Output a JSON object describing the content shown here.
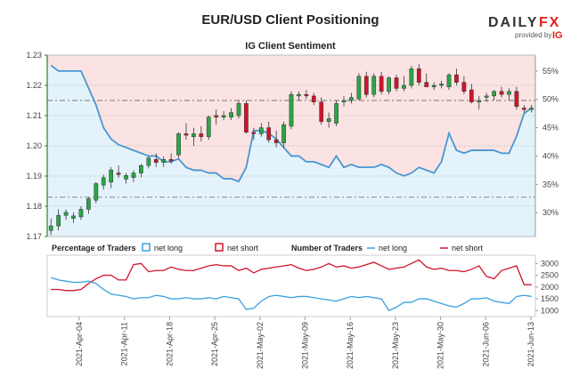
{
  "header": {
    "title": "EUR/USD Client Positioning",
    "subtitle": "IG Client Sentiment"
  },
  "brand": {
    "name_a": "DAILY",
    "name_b": "FX",
    "provided_by": "provided by",
    "partner": "IG"
  },
  "colors": {
    "long": "#39a0e0",
    "short": "#d0152b",
    "up_candle": "#28a745",
    "down_candle": "#d0152b",
    "axis_green": "#2f7d2f",
    "long_fill": "#e4f3fb",
    "short_fill": "#fbe3e3"
  },
  "legend": {
    "pct_label": "Percentage of Traders",
    "net_long": "net long",
    "net_short": "net short",
    "num_label": "Number of Traders"
  },
  "chart_data": {
    "type": "candlestick-with-sentiment",
    "price_axis": {
      "ticks": [
        "1.17",
        "1.18",
        "1.19",
        "1.20",
        "1.21",
        "1.22",
        "1.23"
      ],
      "range": [
        1.17,
        1.23
      ]
    },
    "pct_axis": {
      "ticks": [
        "30%",
        "35%",
        "40%",
        "45%",
        "50%",
        "55%"
      ],
      "range": [
        25.8,
        57.8
      ]
    },
    "count_axis": {
      "ticks": [
        "1000",
        "1500",
        "2000",
        "2500",
        "3000"
      ],
      "range": [
        900,
        3200
      ]
    },
    "x_labels": [
      "2021-Apr-04",
      "2021-Apr-11",
      "2021-Apr-18",
      "2021-Apr-25",
      "2021-May-02",
      "2021-May-09",
      "2021-May-16",
      "2021-May-23",
      "2021-May-30",
      "2021-Jun-06",
      "2021-Jun-13"
    ],
    "reference_lines": {
      "price": 1.215,
      "price_low": 1.183
    },
    "candles": [
      {
        "o": 1.172,
        "h": 1.176,
        "l": 1.1705,
        "c": 1.1735
      },
      {
        "o": 1.1735,
        "h": 1.179,
        "l": 1.172,
        "c": 1.177
      },
      {
        "o": 1.177,
        "h": 1.179,
        "l": 1.1755,
        "c": 1.178
      },
      {
        "o": 1.176,
        "h": 1.178,
        "l": 1.1745,
        "c": 1.1768
      },
      {
        "o": 1.1765,
        "h": 1.18,
        "l": 1.1755,
        "c": 1.179
      },
      {
        "o": 1.179,
        "h": 1.183,
        "l": 1.1775,
        "c": 1.1825
      },
      {
        "o": 1.182,
        "h": 1.188,
        "l": 1.181,
        "c": 1.1875
      },
      {
        "o": 1.187,
        "h": 1.1905,
        "l": 1.1855,
        "c": 1.1895
      },
      {
        "o": 1.188,
        "h": 1.193,
        "l": 1.186,
        "c": 1.192
      },
      {
        "o": 1.191,
        "h": 1.1935,
        "l": 1.1895,
        "c": 1.1905
      },
      {
        "o": 1.189,
        "h": 1.191,
        "l": 1.1875,
        "c": 1.1902
      },
      {
        "o": 1.1895,
        "h": 1.192,
        "l": 1.188,
        "c": 1.191
      },
      {
        "o": 1.191,
        "h": 1.194,
        "l": 1.1895,
        "c": 1.1935
      },
      {
        "o": 1.1935,
        "h": 1.1965,
        "l": 1.1925,
        "c": 1.196
      },
      {
        "o": 1.1955,
        "h": 1.1975,
        "l": 1.193,
        "c": 1.1945
      },
      {
        "o": 1.1945,
        "h": 1.1965,
        "l": 1.193,
        "c": 1.1955
      },
      {
        "o": 1.1955,
        "h": 1.1975,
        "l": 1.194,
        "c": 1.195
      },
      {
        "o": 1.197,
        "h": 1.2045,
        "l": 1.196,
        "c": 1.204
      },
      {
        "o": 1.204,
        "h": 1.2075,
        "l": 1.202,
        "c": 1.2035
      },
      {
        "o": 1.203,
        "h": 1.206,
        "l": 1.2,
        "c": 1.204
      },
      {
        "o": 1.204,
        "h": 1.2065,
        "l": 1.2015,
        "c": 1.203
      },
      {
        "o": 1.203,
        "h": 1.21,
        "l": 1.202,
        "c": 1.2095
      },
      {
        "o": 1.21,
        "h": 1.212,
        "l": 1.207,
        "c": 1.2095
      },
      {
        "o": 1.2095,
        "h": 1.2115,
        "l": 1.2085,
        "c": 1.21
      },
      {
        "o": 1.2095,
        "h": 1.2125,
        "l": 1.2085,
        "c": 1.211
      },
      {
        "o": 1.21,
        "h": 1.215,
        "l": 1.209,
        "c": 1.214
      },
      {
        "o": 1.214,
        "h": 1.215,
        "l": 1.204,
        "c": 1.2045
      },
      {
        "o": 1.2045,
        "h": 1.206,
        "l": 1.202,
        "c": 1.204
      },
      {
        "o": 1.204,
        "h": 1.2075,
        "l": 1.203,
        "c": 1.206
      },
      {
        "o": 1.206,
        "h": 1.208,
        "l": 1.201,
        "c": 1.202
      },
      {
        "o": 1.202,
        "h": 1.205,
        "l": 1.1995,
        "c": 1.201
      },
      {
        "o": 1.201,
        "h": 1.208,
        "l": 1.1995,
        "c": 1.207
      },
      {
        "o": 1.2065,
        "h": 1.218,
        "l": 1.2055,
        "c": 1.217
      },
      {
        "o": 1.2165,
        "h": 1.218,
        "l": 1.215,
        "c": 1.217
      },
      {
        "o": 1.217,
        "h": 1.2185,
        "l": 1.2155,
        "c": 1.2165
      },
      {
        "o": 1.2165,
        "h": 1.2175,
        "l": 1.2135,
        "c": 1.2145
      },
      {
        "o": 1.2145,
        "h": 1.216,
        "l": 1.207,
        "c": 1.208
      },
      {
        "o": 1.208,
        "h": 1.211,
        "l": 1.206,
        "c": 1.209
      },
      {
        "o": 1.2075,
        "h": 1.215,
        "l": 1.2065,
        "c": 1.214
      },
      {
        "o": 1.2145,
        "h": 1.2165,
        "l": 1.213,
        "c": 1.215
      },
      {
        "o": 1.215,
        "h": 1.2175,
        "l": 1.214,
        "c": 1.216
      },
      {
        "o": 1.2155,
        "h": 1.224,
        "l": 1.215,
        "c": 1.223
      },
      {
        "o": 1.223,
        "h": 1.2245,
        "l": 1.216,
        "c": 1.217
      },
      {
        "o": 1.217,
        "h": 1.224,
        "l": 1.216,
        "c": 1.223
      },
      {
        "o": 1.223,
        "h": 1.2245,
        "l": 1.217,
        "c": 1.218
      },
      {
        "o": 1.218,
        "h": 1.223,
        "l": 1.217,
        "c": 1.2225
      },
      {
        "o": 1.2225,
        "h": 1.2235,
        "l": 1.218,
        "c": 1.219
      },
      {
        "o": 1.219,
        "h": 1.223,
        "l": 1.218,
        "c": 1.22
      },
      {
        "o": 1.22,
        "h": 1.2265,
        "l": 1.219,
        "c": 1.2255
      },
      {
        "o": 1.2255,
        "h": 1.227,
        "l": 1.22,
        "c": 1.221
      },
      {
        "o": 1.221,
        "h": 1.224,
        "l": 1.2195,
        "c": 1.2195
      },
      {
        "o": 1.2195,
        "h": 1.221,
        "l": 1.2185,
        "c": 1.22
      },
      {
        "o": 1.22,
        "h": 1.2215,
        "l": 1.219,
        "c": 1.2205
      },
      {
        "o": 1.2195,
        "h": 1.224,
        "l": 1.2185,
        "c": 1.2235
      },
      {
        "o": 1.2235,
        "h": 1.2255,
        "l": 1.22,
        "c": 1.221
      },
      {
        "o": 1.221,
        "h": 1.223,
        "l": 1.217,
        "c": 1.218
      },
      {
        "o": 1.2185,
        "h": 1.2205,
        "l": 1.214,
        "c": 1.2145
      },
      {
        "o": 1.2145,
        "h": 1.2165,
        "l": 1.212,
        "c": 1.215
      },
      {
        "o": 1.216,
        "h": 1.2175,
        "l": 1.2145,
        "c": 1.2165
      },
      {
        "o": 1.2165,
        "h": 1.2185,
        "l": 1.215,
        "c": 1.218
      },
      {
        "o": 1.218,
        "h": 1.2195,
        "l": 1.216,
        "c": 1.217
      },
      {
        "o": 1.217,
        "h": 1.219,
        "l": 1.215,
        "c": 1.218
      },
      {
        "o": 1.218,
        "h": 1.2195,
        "l": 1.212,
        "c": 1.213
      },
      {
        "o": 1.2125,
        "h": 1.2135,
        "l": 1.211,
        "c": 1.212
      },
      {
        "o": 1.212,
        "h": 1.2135,
        "l": 1.211,
        "c": 1.2125
      }
    ],
    "series": [
      {
        "name": "net long",
        "pct_values": [
          56.0,
          55.0,
          55.0,
          55.0,
          55.0,
          52.0,
          49.0,
          45.0,
          43.0,
          42.0,
          41.5,
          41.0,
          40.5,
          40.0,
          40.0,
          39.0,
          39.0,
          39.5,
          38.0,
          37.5,
          37.5,
          37.0,
          37.0,
          36.0,
          36.0,
          35.5,
          38.0,
          44.5,
          44.5,
          44.0,
          43.0,
          41.5,
          40.0,
          40.0,
          39.0,
          39.0,
          38.5,
          38.0,
          40.0,
          38.0,
          38.5,
          38.0,
          38.0,
          38.0,
          38.5,
          38.0,
          37.0,
          36.5,
          37.0,
          38.0,
          37.5,
          37.0,
          39.0,
          44.0,
          41.0,
          40.5,
          41.0,
          41.0,
          41.0,
          41.0,
          40.5,
          40.5,
          43.5,
          47.5,
          48.5
        ],
        "count_values": [
          2400,
          2300,
          2250,
          2200,
          2200,
          2250,
          2150,
          1900,
          1700,
          1650,
          1600,
          1500,
          1550,
          1550,
          1650,
          1600,
          1500,
          1500,
          1550,
          1500,
          1500,
          1550,
          1500,
          1600,
          1550,
          1500,
          1050,
          1100,
          1400,
          1600,
          1650,
          1600,
          1550,
          1600,
          1600,
          1550,
          1500,
          1450,
          1400,
          1500,
          1600,
          1550,
          1600,
          1550,
          1500,
          1000,
          1150,
          1350,
          1350,
          1500,
          1500,
          1400,
          1300,
          1200,
          1150,
          1300,
          1500,
          1500,
          1550,
          1400,
          1350,
          1300,
          1600,
          1650,
          1600
        ]
      },
      {
        "name": "net short",
        "pct_values": [
          44.0,
          45.0,
          45.0,
          45.0,
          45.0,
          48.0,
          51.0,
          55.0,
          57.0,
          58.0,
          58.5,
          59.0,
          59.5,
          60.0,
          60.0,
          61.0,
          61.0,
          60.5,
          62.0,
          62.5,
          62.5,
          63.0,
          63.0,
          64.0,
          64.0,
          64.5,
          62.0,
          55.5,
          55.5,
          56.0,
          57.0,
          58.5,
          60.0,
          60.0,
          61.0,
          61.0,
          61.5,
          62.0,
          60.0,
          62.0,
          61.5,
          62.0,
          62.0,
          62.0,
          61.5,
          62.0,
          63.0,
          63.5,
          63.0,
          62.0,
          62.5,
          63.0,
          61.0,
          56.0,
          59.0,
          59.5,
          59.0,
          59.0,
          59.0,
          59.0,
          59.5,
          59.5,
          56.5,
          52.5,
          51.5
        ],
        "count_values": [
          1900,
          1900,
          1850,
          1850,
          1900,
          2150,
          2350,
          2500,
          2500,
          2300,
          2300,
          2950,
          3000,
          2650,
          2700,
          2700,
          2850,
          2750,
          2700,
          2700,
          2800,
          2900,
          2950,
          2900,
          2900,
          2700,
          2800,
          2600,
          2750,
          2800,
          2850,
          2900,
          2950,
          2800,
          2700,
          2750,
          2850,
          3000,
          2850,
          2900,
          2800,
          2850,
          2950,
          3050,
          2900,
          2750,
          2800,
          2850,
          3000,
          3150,
          2850,
          2750,
          2800,
          2700,
          2700,
          2650,
          2750,
          2900,
          2450,
          2350,
          2700,
          2800,
          2900,
          2100,
          2100
        ]
      }
    ]
  }
}
